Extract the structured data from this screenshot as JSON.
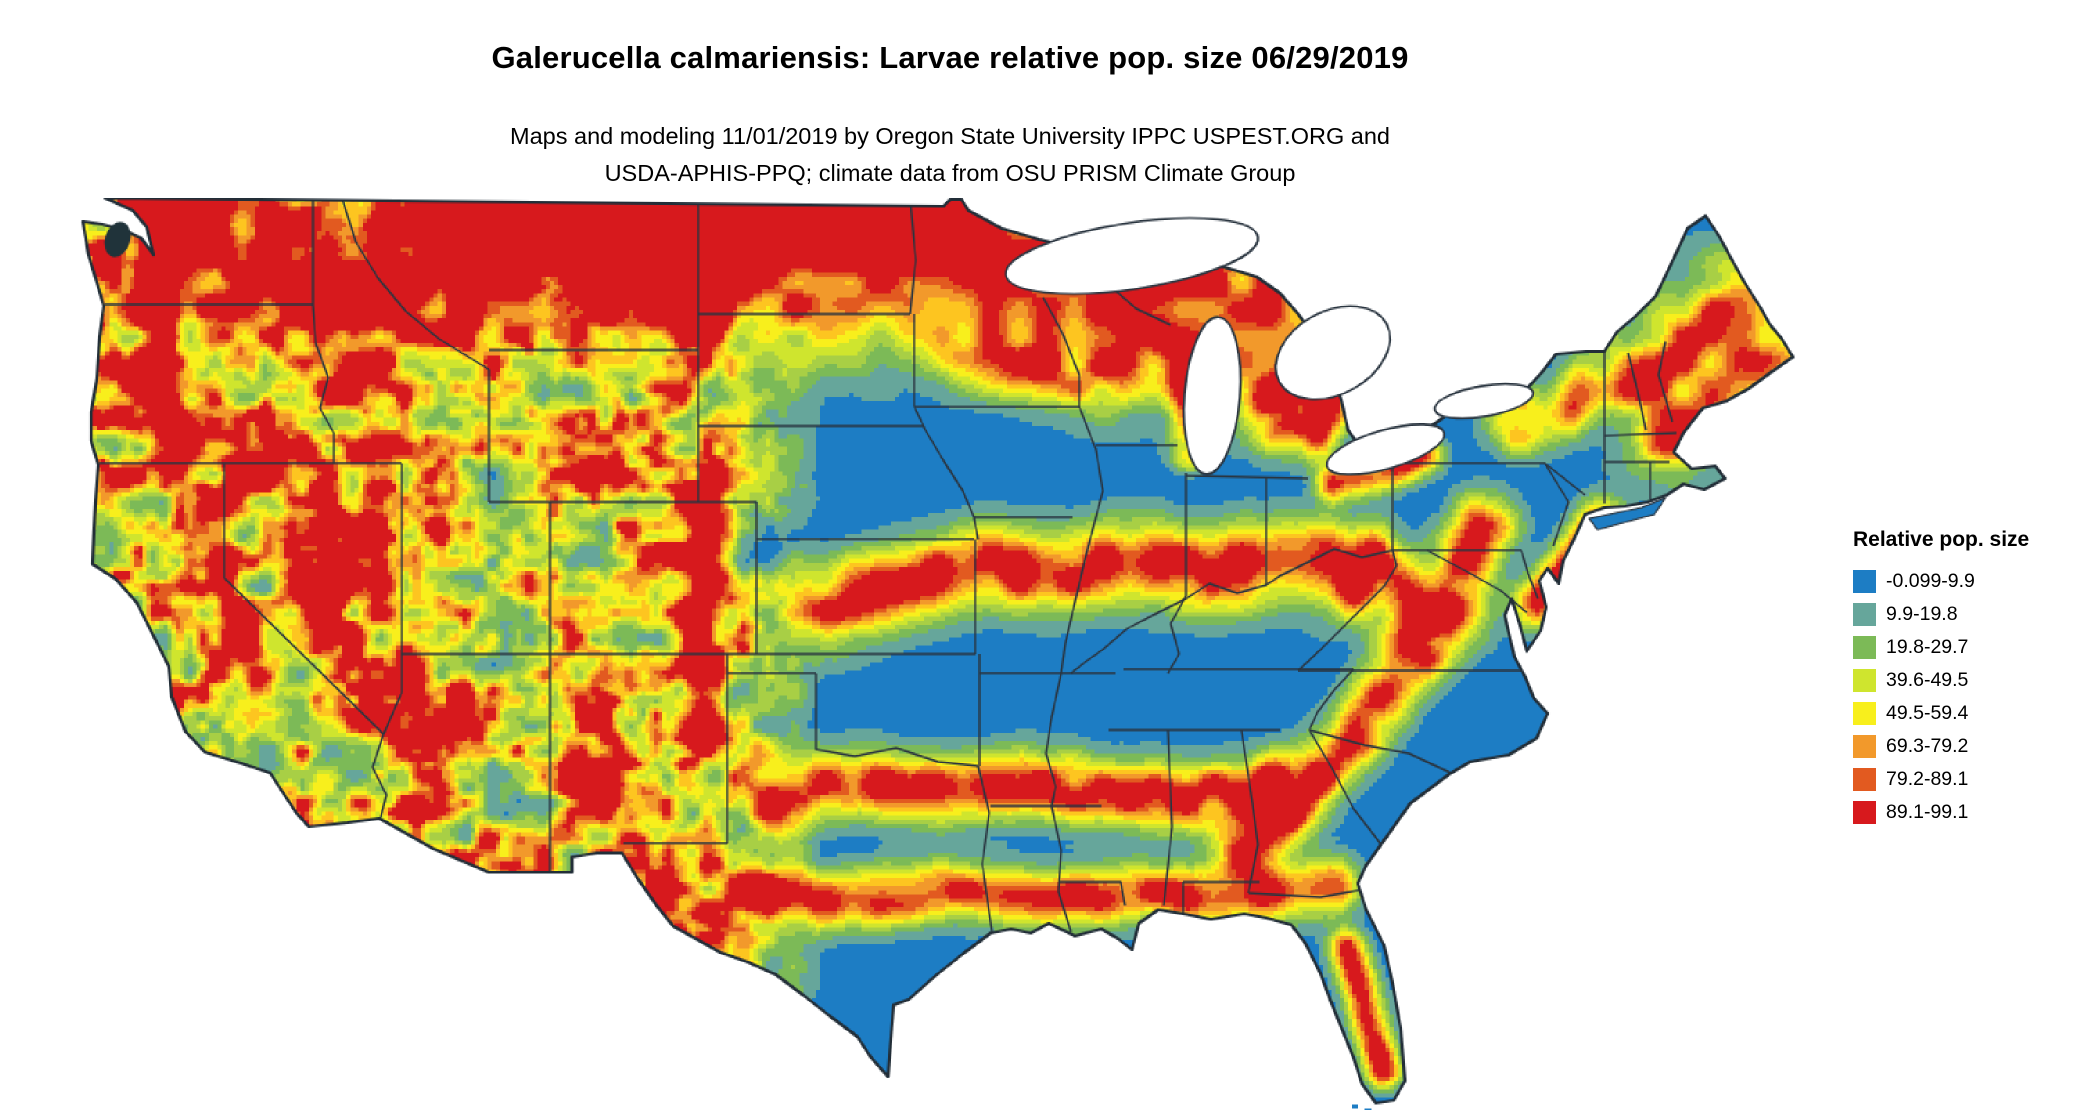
{
  "title": "Galerucella calmariensis: Larvae relative pop. size 06/29/2019",
  "subtitle": {
    "line1": "Maps and modeling 11/01/2019 by Oregon State University IPPC USPEST.ORG and",
    "line2": "USDA-APHIS-PPQ; climate data from OSU PRISM Climate Group"
  },
  "species": "Galerucella calmariensis",
  "life_stage": "Larvae",
  "map_date": "06/29/2019",
  "model_date": "11/01/2019",
  "legend": {
    "title": "Relative pop. size",
    "items": [
      {
        "label": "-0.099-9.9",
        "color": "#1d7dc4"
      },
      {
        "label": "9.9-19.8",
        "color": "#66a69b"
      },
      {
        "label": "19.8-29.7",
        "color": "#7cba57"
      },
      {
        "label": "39.6-49.5",
        "color": "#cfe52e"
      },
      {
        "label": "49.5-59.4",
        "color": "#f8ef1c"
      },
      {
        "label": "69.3-79.2",
        "color": "#f2992b"
      },
      {
        "label": "79.2-89.1",
        "color": "#e25a20"
      },
      {
        "label": "89.1-99.1",
        "color": "#d7191d"
      }
    ]
  },
  "map": {
    "region": "Contiguous United States",
    "class_breaks": [
      9.9,
      19.8,
      29.7,
      39.6,
      49.5,
      59.4,
      69.3,
      79.2,
      89.1
    ],
    "class_colors": [
      "#1d7dc4",
      "#66a69b",
      "#7cba57",
      "#a8cf45",
      "#cfe52e",
      "#f8ef1c",
      "#fdc520",
      "#f2992b",
      "#e25a20",
      "#d7191d"
    ],
    "border_color": "#2a3540",
    "background": "#ffffff"
  }
}
